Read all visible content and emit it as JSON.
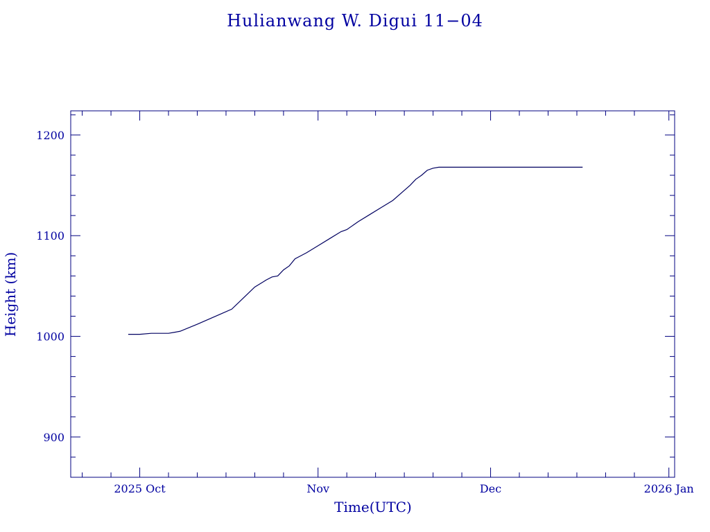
{
  "chart_data": {
    "type": "line",
    "title": "Hulianwang W. Digui 11−04",
    "xlabel": "Time(UTC)",
    "ylabel": "Height (km)",
    "x_axis": {
      "type": "date",
      "min": "2025-09-19",
      "max": "2026-01-02",
      "ticks": [
        {
          "date": "2025-10-01",
          "label": "2025 Oct"
        },
        {
          "date": "2025-11-01",
          "label": "Nov"
        },
        {
          "date": "2025-12-01",
          "label": "Dec"
        },
        {
          "date": "2026-01-01",
          "label": "2026 Jan"
        }
      ]
    },
    "y_axis": {
      "min": 860,
      "max": 1224,
      "ticks": [
        900,
        1000,
        1100,
        1200
      ],
      "minor_step": 20
    },
    "grid": false,
    "legend": "none",
    "colors": {
      "text": "#0000a0",
      "axes": "#000080",
      "line": "#000060"
    },
    "series": [
      {
        "x": [
          "2025-09-29",
          "2025-10-01",
          "2025-10-03",
          "2025-10-06",
          "2025-10-07",
          "2025-10-08",
          "2025-10-11",
          "2025-10-13",
          "2025-10-15",
          "2025-10-17",
          "2025-10-19",
          "2025-10-21",
          "2025-10-23",
          "2025-10-24",
          "2025-10-25",
          "2025-10-26",
          "2025-10-27",
          "2025-10-28",
          "2025-10-29",
          "2025-10-30",
          "2025-11-01",
          "2025-11-03",
          "2025-11-05",
          "2025-11-06",
          "2025-11-08",
          "2025-11-10",
          "2025-11-12",
          "2025-11-14",
          "2025-11-16",
          "2025-11-17",
          "2025-11-18",
          "2025-11-19",
          "2025-11-20",
          "2025-11-21",
          "2025-11-22",
          "2025-11-25",
          "2025-12-01",
          "2025-12-08",
          "2025-12-15",
          "2025-12-17"
        ],
        "y": [
          1002,
          1002,
          1003,
          1003,
          1004,
          1005,
          1012,
          1017,
          1022,
          1027,
          1038,
          1049,
          1056,
          1059,
          1060,
          1066,
          1070,
          1077,
          1080,
          1083,
          1090,
          1097,
          1104,
          1106,
          1114,
          1121,
          1128,
          1135,
          1145,
          1150,
          1156,
          1160,
          1165,
          1167,
          1168,
          1168,
          1168,
          1168,
          1168,
          1168
        ]
      }
    ]
  }
}
